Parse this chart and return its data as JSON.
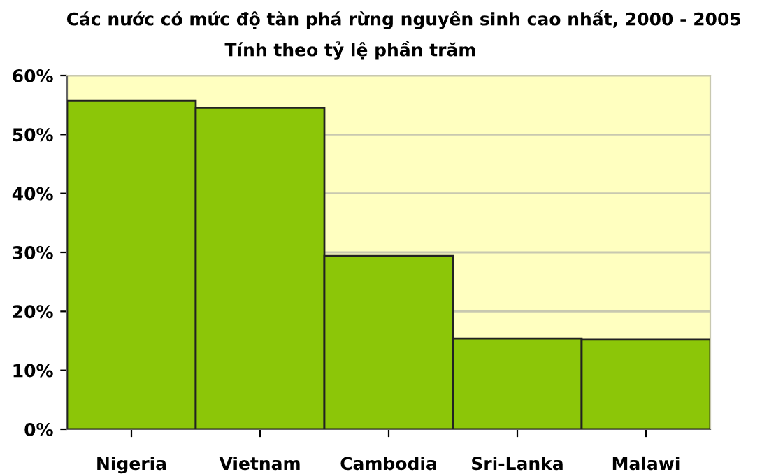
{
  "chart_data": {
    "type": "bar",
    "title": "Các nước có mức độ tàn phá rừng nguyên sinh cao nhất, 2000 - 2005",
    "subtitle": "Tính theo tỷ lệ phần trăm",
    "categories": [
      "Nigeria",
      "Vietnam",
      "Cambodia",
      "Sri-Lanka",
      "Malawi"
    ],
    "values": [
      55.7,
      54.5,
      29.4,
      15.4,
      15.2
    ],
    "color": "#8cc608",
    "ylim": [
      0,
      60
    ],
    "yticks": [
      {
        "value": 0,
        "label": "0%"
      },
      {
        "value": 10,
        "label": "10%"
      },
      {
        "value": 20,
        "label": "20%"
      },
      {
        "value": 30,
        "label": "30%"
      },
      {
        "value": 40,
        "label": "40%"
      },
      {
        "value": 50,
        "label": "50%"
      },
      {
        "value": 60,
        "label": "60%"
      }
    ],
    "grid": "y",
    "bands": [
      {
        "axis": "y",
        "from": 0,
        "to": 60,
        "color": "#ffffc0"
      }
    ]
  }
}
